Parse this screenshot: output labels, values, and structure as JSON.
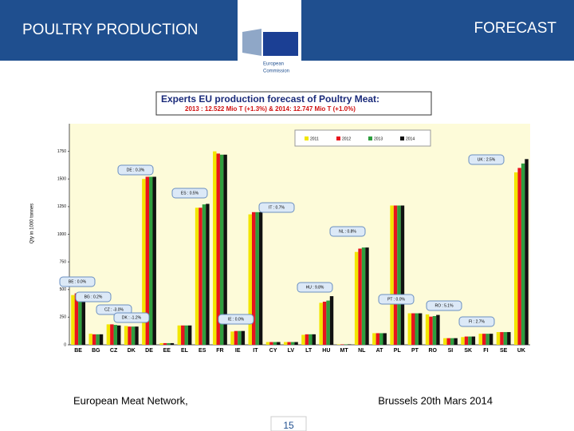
{
  "header": {
    "title": "POULTRY PRODUCTION",
    "right": "FORECAST",
    "logo_line1": "European",
    "logo_line2": "Commission"
  },
  "chart_data": {
    "type": "bar",
    "title": "Experts EU production forecast of Poultry Meat:",
    "subtitle": "2013 : 12.522 Mio T (+1.3%) & 2014: 12.747 Mio T (+1.0%)",
    "y_label": "Qty in 1000 tonnes",
    "categories": [
      "BE",
      "BG",
      "CZ",
      "DK",
      "DE",
      "EE",
      "EL",
      "ES",
      "FR",
      "IE",
      "IT",
      "CY",
      "LV",
      "LT",
      "HU",
      "MT",
      "NL",
      "AT",
      "PL",
      "PT",
      "RO",
      "SI",
      "SK",
      "FI",
      "SE",
      "UK"
    ],
    "series": [
      {
        "name": "2011",
        "color": "#f2e600",
        "values": [
          450,
          100,
          185,
          170,
          1500,
          15,
          175,
          1240,
          1750,
          120,
          1180,
          25,
          25,
          90,
          380,
          4,
          840,
          105,
          1260,
          285,
          275,
          60,
          70,
          100,
          115,
          1560
        ]
      },
      {
        "name": "2012",
        "color": "#e8141e",
        "values": [
          465,
          95,
          185,
          165,
          1520,
          15,
          175,
          1240,
          1730,
          125,
          1200,
          25,
          25,
          95,
          390,
          4,
          870,
          105,
          1260,
          285,
          255,
          60,
          75,
          100,
          115,
          1600
        ]
      },
      {
        "name": "2013",
        "color": "#2e9e3e",
        "values": [
          455,
          95,
          180,
          165,
          1520,
          15,
          175,
          1270,
          1720,
          125,
          1200,
          25,
          25,
          95,
          400,
          4,
          880,
          105,
          1260,
          285,
          260,
          60,
          75,
          100,
          115,
          1640
        ]
      },
      {
        "name": "2014",
        "color": "#111111",
        "values": [
          450,
          95,
          175,
          165,
          1520,
          15,
          175,
          1275,
          1720,
          125,
          1200,
          25,
          25,
          95,
          440,
          4,
          880,
          105,
          1260,
          285,
          270,
          60,
          75,
          100,
          115,
          1680
        ]
      }
    ],
    "ylim": [
      0,
      2000
    ],
    "yticks": [
      0,
      250,
      500,
      750,
      1000,
      1250,
      1500,
      1750
    ],
    "annotations": [
      "UK : 2.5%",
      "DE : 0.3%",
      "ES : 0.5%",
      "IT : 0.7%",
      "NL : 0.8%",
      "HU : 9.8%",
      "BE : 0.0%",
      "BG : 0.2%",
      "CZ : -3.0%",
      "DK : -1.2%",
      "IE : 0.0%",
      "PT : 0.0%",
      "RO : 5.1%",
      "FI : 2.7%"
    ]
  },
  "footer": {
    "left": "European Meat Network,",
    "right": "Brussels 20th Mars 2014",
    "page": "15"
  }
}
